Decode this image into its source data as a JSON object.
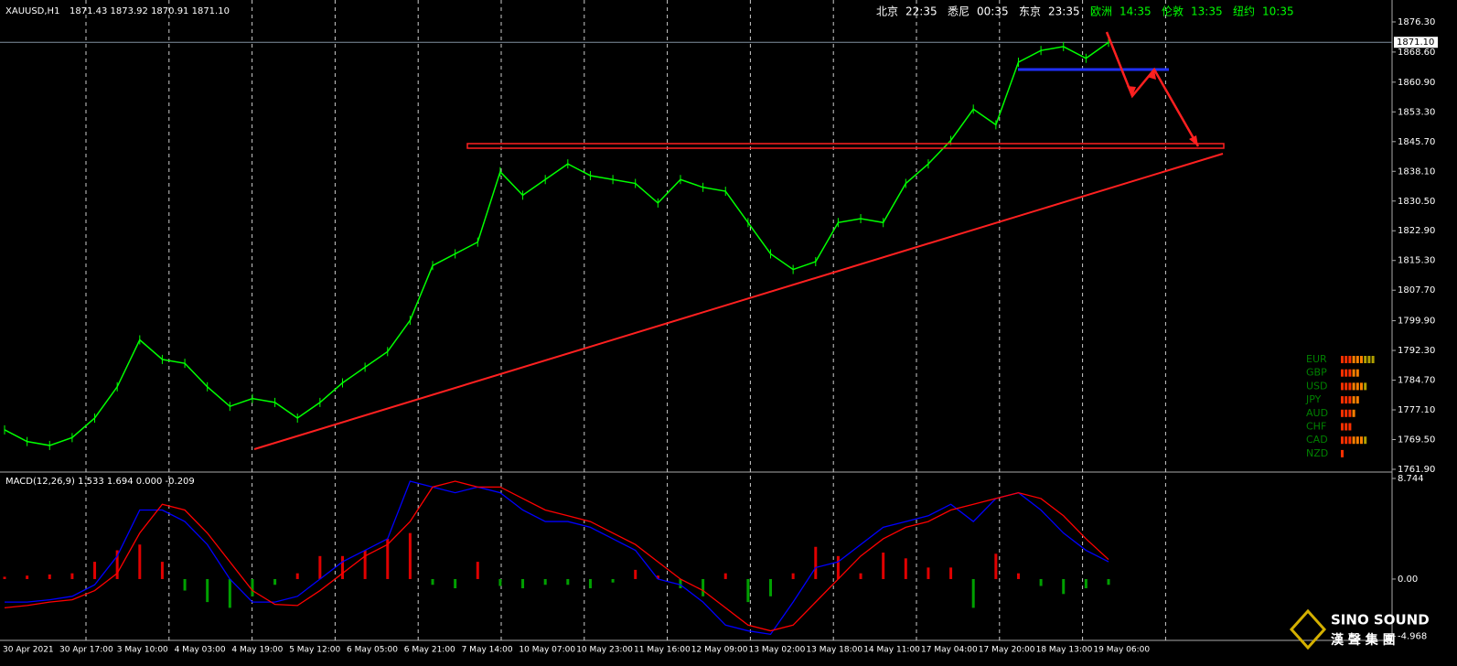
{
  "chart_data": [
    {
      "type": "line",
      "title": "XAUUSD,H1",
      "quote": "1871.43 1873.92 1870.91 1871.10",
      "color": "#00ff00",
      "values": [
        1772,
        1769,
        1768,
        1770,
        1775,
        1783,
        1795,
        1790,
        1789,
        1783,
        1778,
        1780,
        1779,
        1775,
        1779,
        1784,
        1788,
        1792,
        1800,
        1814,
        1817,
        1820,
        1838,
        1832,
        1836,
        1840,
        1837,
        1836,
        1835,
        1830,
        1836,
        1834,
        1833,
        1825,
        1817,
        1813,
        1815,
        1825,
        1826,
        1825,
        1835,
        1840,
        1846,
        1854,
        1850,
        1866,
        1869,
        1870,
        1867,
        1871.1
      ],
      "x_labels": [
        "30 Apr 2021",
        "30 Apr 17:00",
        "3 May 10:00",
        "4 May 03:00",
        "4 May 19:00",
        "5 May 12:00",
        "6 May 05:00",
        "6 May 21:00",
        "7 May 14:00",
        "10 May 07:00",
        "10 May 23:00",
        "11 May 16:00",
        "12 May 09:00",
        "13 May 02:00",
        "13 May 18:00",
        "14 May 11:00",
        "17 May 04:00",
        "17 May 20:00",
        "18 May 13:00",
        "19 May 06:00"
      ],
      "ylim": [
        1761.43,
        1881.91
      ],
      "yticks": [
        {
          "value": 1876.3,
          "label": "1876.30"
        },
        {
          "value": 1868.6,
          "label": "1868.60"
        },
        {
          "value": 1860.9,
          "label": "1860.90"
        },
        {
          "value": 1853.3,
          "label": "1853.30"
        },
        {
          "value": 1845.7,
          "label": "1845.70"
        },
        {
          "value": 1838.1,
          "label": "1838.10"
        },
        {
          "value": 1830.5,
          "label": "1830.50"
        },
        {
          "value": 1822.9,
          "label": "1822.90"
        },
        {
          "value": 1815.3,
          "label": "1815.30"
        },
        {
          "value": 1807.7,
          "label": "1807.70"
        },
        {
          "value": 1799.9,
          "label": "1799.90"
        },
        {
          "value": 1792.3,
          "label": "1792.30"
        },
        {
          "value": 1784.7,
          "label": "1784.70"
        },
        {
          "value": 1777.1,
          "label": "1777.10"
        },
        {
          "value": 1769.5,
          "label": "1769.50"
        },
        {
          "value": 1761.9,
          "label": "1761.90"
        }
      ],
      "current_price": {
        "value": 1871.1,
        "label": "1871.10"
      }
    },
    {
      "type": "macd",
      "title": "MACD(12,26,9) 1.533 1.694 0.000 -0.209",
      "histogram": [
        0.2,
        0.3,
        0.4,
        0.5,
        1.5,
        2.5,
        3,
        1.5,
        -1,
        -2,
        -2.5,
        -1.5,
        -0.5,
        0.5,
        2,
        2,
        2.5,
        3.5,
        4,
        -0.5,
        -0.8,
        1.5,
        -0.6,
        -0.8,
        -0.5,
        -0.5,
        -0.8,
        -0.3,
        0.8,
        0.3,
        -0.8,
        -1.5,
        0.5,
        -2,
        -1.5,
        0.5,
        2.8,
        2,
        0.5,
        2.3,
        1.8,
        1,
        1,
        -2.5,
        2.2,
        0.5,
        -0.6,
        -1.3,
        -0.8,
        -0.5
      ],
      "macd": {
        "color": "#0000ff",
        "values": [
          -2,
          -2,
          -1.8,
          -1.5,
          -0.5,
          2,
          6,
          6,
          5,
          3,
          0,
          -2,
          -2,
          -1.5,
          0,
          1.5,
          2.5,
          3.5,
          8.5,
          8,
          7.5,
          8,
          7.5,
          6,
          5,
          5,
          4.5,
          3.5,
          2.5,
          0,
          -0.5,
          -2,
          -4,
          -4.5,
          -4.8,
          -2,
          1,
          1.5,
          3,
          4.5,
          5,
          5.5,
          6.5,
          5,
          7,
          7.5,
          6,
          4,
          2.5,
          1.5
        ]
      },
      "signal": {
        "color": "#ff0000",
        "values": [
          -2.5,
          -2.3,
          -2,
          -1.8,
          -1,
          0.5,
          4,
          6.5,
          6,
          4,
          1.5,
          -1,
          -2.2,
          -2.3,
          -1,
          0.5,
          2,
          3,
          5,
          8,
          8.5,
          8,
          8,
          7,
          6,
          5.5,
          5,
          4,
          3,
          1.5,
          0,
          -1,
          -2.5,
          -4,
          -4.5,
          -4,
          -2,
          0,
          2,
          3.5,
          4.5,
          5,
          6,
          6.5,
          7,
          7.5,
          7,
          5.5,
          3.5,
          1.7
        ]
      },
      "ylim": [
        -5.33,
        9.22
      ],
      "yticks": [
        8.744,
        {
          "value": 0,
          "label": "0.00"
        },
        -4.968
      ]
    }
  ],
  "clocks": [
    [
      "北京",
      "22:35"
    ],
    [
      "悉尼",
      "00:35"
    ],
    [
      "东京",
      "23:35"
    ],
    [
      "欧洲",
      "14:35"
    ],
    [
      "伦敦",
      "13:35"
    ],
    [
      "纽约",
      "10:35"
    ]
  ],
  "currency_strength": {
    "labels": [
      "EUR",
      "GBP",
      "USD",
      "JPY",
      "AUD",
      "CHF",
      "CAD",
      "NZD"
    ],
    "values": [
      9,
      5,
      7,
      5,
      4,
      3,
      7,
      1
    ]
  },
  "watermark": {
    "brand": "SINO SOUND",
    "chinese": "漢 聲 集 團"
  }
}
